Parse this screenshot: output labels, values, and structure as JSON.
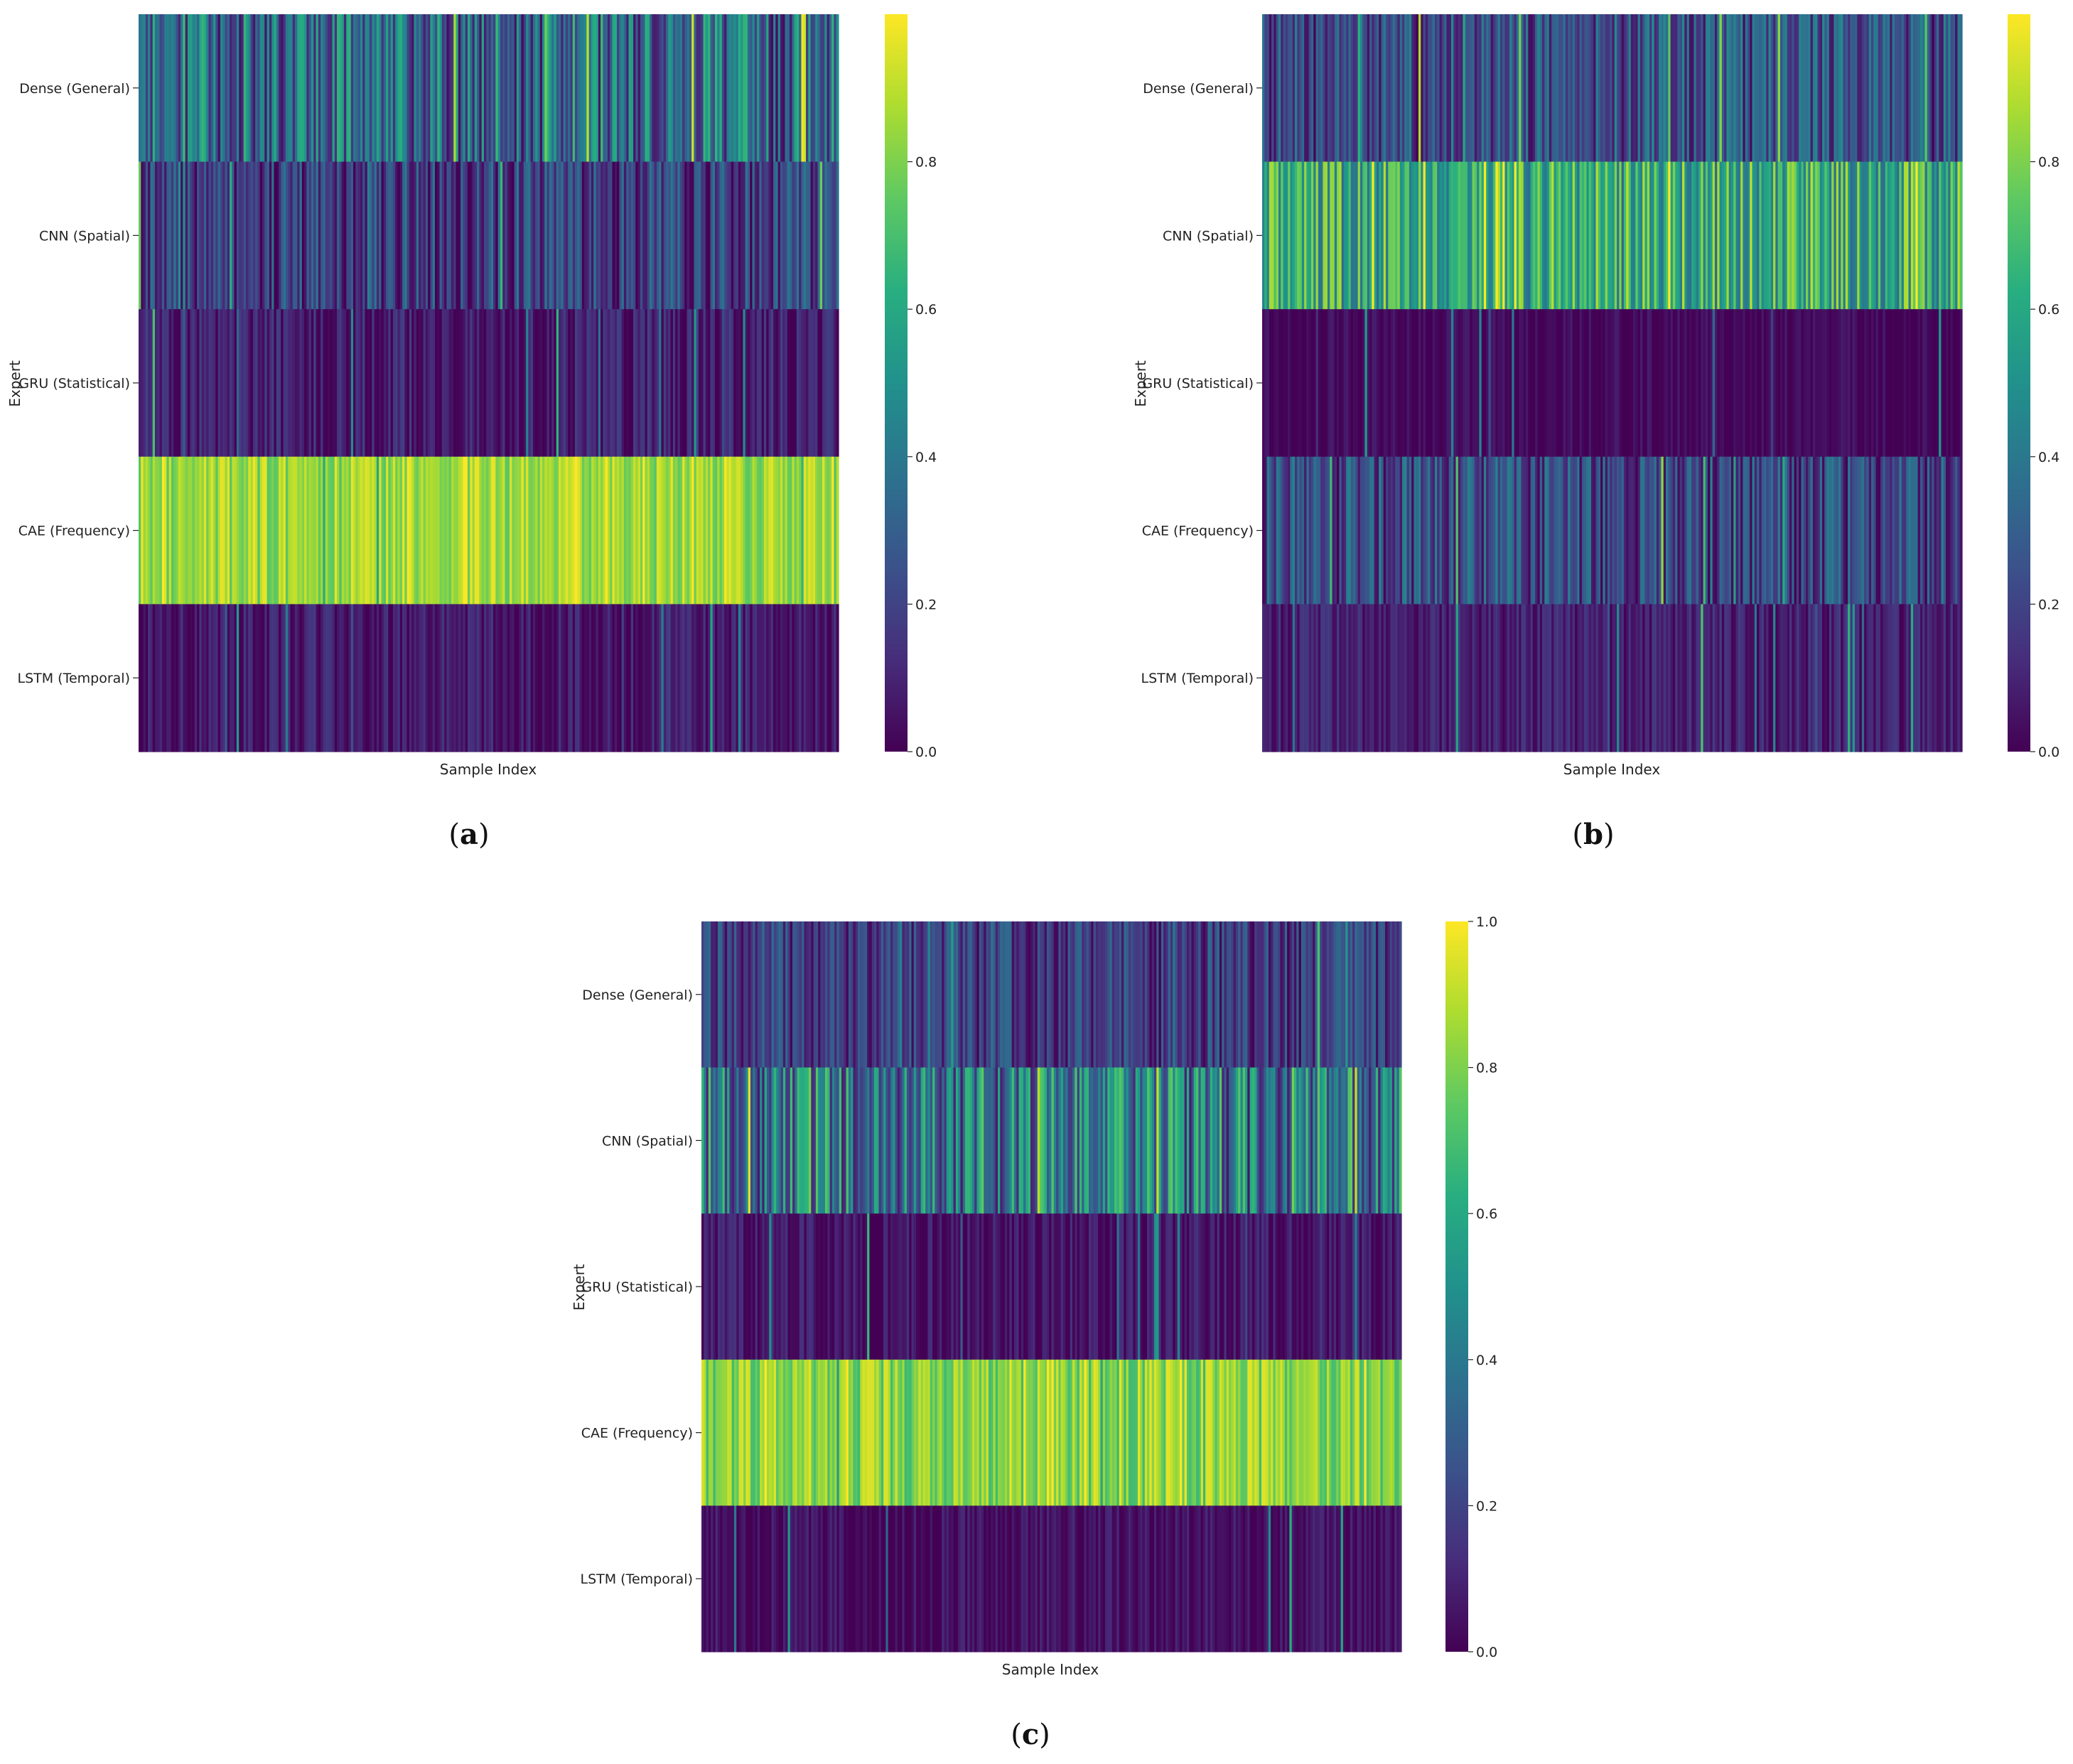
{
  "figure": {
    "panels": [
      {
        "caption_open": "(",
        "caption_letter": "a",
        "caption_close": ")"
      },
      {
        "caption_open": "(",
        "caption_letter": "b",
        "caption_close": ")"
      },
      {
        "caption_open": "(",
        "caption_letter": "c",
        "caption_close": ")"
      }
    ]
  },
  "chart_data": [
    {
      "type": "heatmap",
      "panel": "a",
      "title": "",
      "xlabel": "Sample Index",
      "ylabel": "Expert",
      "row_labels": [
        "Dense (General)",
        "CNN (Spatial)",
        "GRU (Statistical)",
        "CAE (Frequency)",
        "LSTM (Temporal)"
      ],
      "n_samples": 300,
      "row_mean_weights": [
        0.35,
        0.18,
        0.08,
        0.85,
        0.07
      ],
      "row_spread": [
        0.32,
        0.22,
        0.12,
        0.12,
        0.1
      ],
      "colormap": "viridis",
      "colorbar": {
        "vmin": 0.0,
        "vmax": 1.0,
        "ticks": [
          0.0,
          0.2,
          0.4,
          0.6,
          0.8
        ],
        "tick_labels": [
          "0.0",
          "0.2",
          "0.4",
          "0.6",
          "0.8"
        ]
      }
    },
    {
      "type": "heatmap",
      "panel": "b",
      "title": "",
      "xlabel": "Sample Index",
      "ylabel": "Expert",
      "row_labels": [
        "Dense (General)",
        "CNN (Spatial)",
        "GRU (Statistical)",
        "CAE (Frequency)",
        "LSTM (Temporal)"
      ],
      "n_samples": 300,
      "row_mean_weights": [
        0.25,
        0.62,
        0.02,
        0.22,
        0.09
      ],
      "row_spread": [
        0.22,
        0.28,
        0.06,
        0.22,
        0.09
      ],
      "colormap": "viridis",
      "colorbar": {
        "vmin": 0.0,
        "vmax": 1.0,
        "ticks": [
          0.0,
          0.2,
          0.4,
          0.6,
          0.8
        ],
        "tick_labels": [
          "0.0",
          "0.2",
          "0.4",
          "0.6",
          "0.8"
        ]
      }
    },
    {
      "type": "heatmap",
      "panel": "c",
      "title": "",
      "xlabel": "Sample Index",
      "ylabel": "Expert",
      "row_labels": [
        "Dense (General)",
        "CNN (Spatial)",
        "GRU (Statistical)",
        "CAE (Frequency)",
        "LSTM (Temporal)"
      ],
      "n_samples": 300,
      "row_mean_weights": [
        0.18,
        0.4,
        0.05,
        0.82,
        0.04
      ],
      "row_spread": [
        0.18,
        0.35,
        0.1,
        0.15,
        0.08
      ],
      "colormap": "viridis",
      "colorbar": {
        "vmin": 0.0,
        "vmax": 1.0,
        "ticks": [
          0.0,
          0.2,
          0.4,
          0.6,
          0.8,
          1.0
        ],
        "tick_labels": [
          "0.0",
          "0.2",
          "0.4",
          "0.6",
          "0.8",
          "1.0"
        ]
      }
    }
  ]
}
